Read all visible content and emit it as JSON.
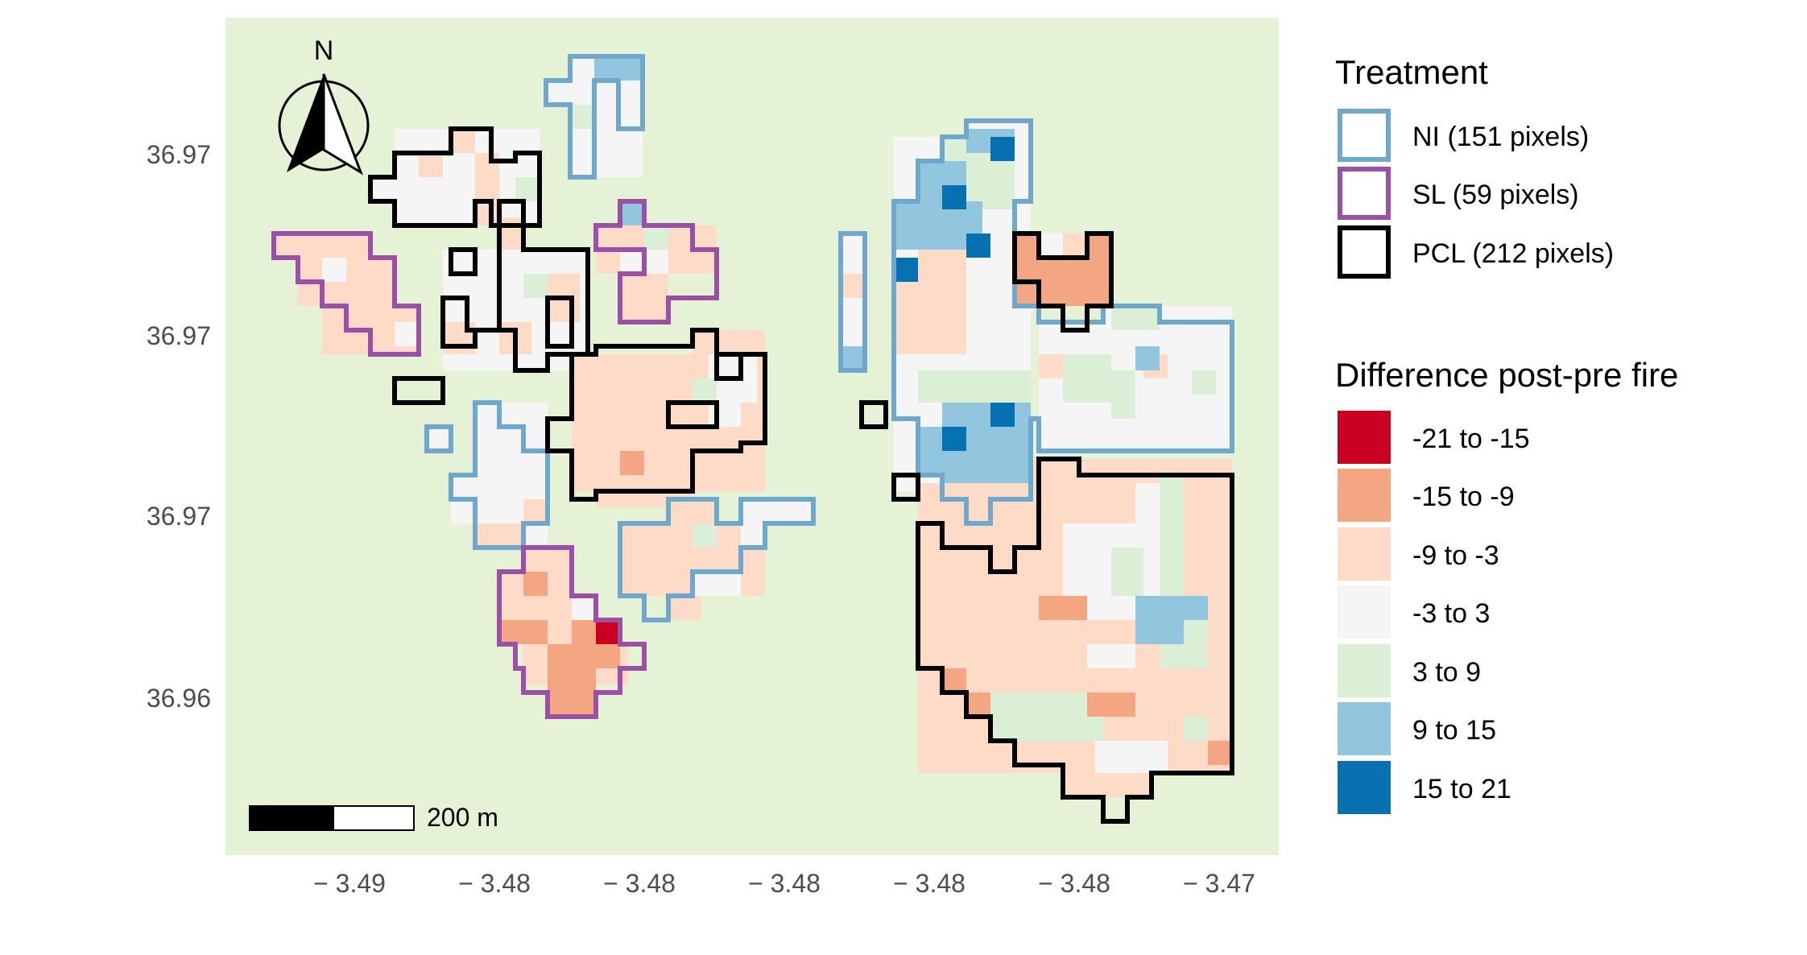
{
  "map": {
    "background_color": "#e6f2d6",
    "y_ticks": [
      "36.97",
      "36.97",
      "36.97",
      "36.96"
    ],
    "x_ticks": [
      "− 3.49",
      "− 3.48",
      "− 3.48",
      "− 3.48",
      "− 3.48",
      "− 3.48",
      "− 3.47"
    ],
    "north_label": "N",
    "scale_bar_label": "200 m"
  },
  "legend": {
    "treatment": {
      "title": "Treatment",
      "items": [
        {
          "label": "NI (151 pixels)",
          "color": "#6ea8cf"
        },
        {
          "label": "SL (59 pixels)",
          "color": "#9b4fa6"
        },
        {
          "label": "PCL (212 pixels)",
          "color": "#000000"
        }
      ]
    },
    "difference": {
      "title": "Difference post-pre fire",
      "items": [
        {
          "label": "-21 to -15",
          "color": "#ca0020"
        },
        {
          "label": "-15 to -9",
          "color": "#f4a582"
        },
        {
          "label": "-9 to -3",
          "color": "#fddbc7"
        },
        {
          "label": "-3 to 3",
          "color": "#f5f5f5"
        },
        {
          "label": "3 to 9",
          "color": "#dbeed6"
        },
        {
          "label": "9 to 15",
          "color": "#92c5de"
        },
        {
          "label": "15 to 21",
          "color": "#0571b0"
        }
      ]
    }
  }
}
